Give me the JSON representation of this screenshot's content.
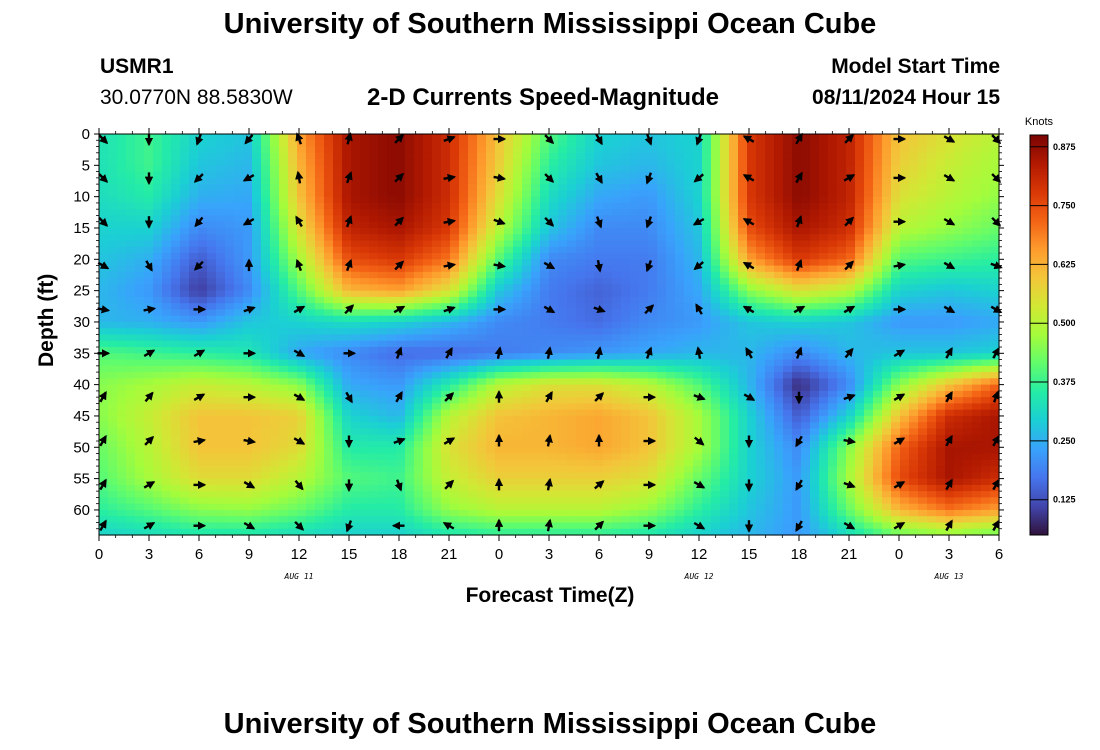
{
  "title": "University of Southern Mississippi Ocean Cube",
  "footer_title": "University of Southern Mississippi Ocean Cube",
  "station": "USMR1",
  "coordinates": "30.0770N  88.5830W",
  "subtitle": "2-D Currents Speed-Magnitude",
  "model_start_label": "Model Start Time",
  "model_start_value": "08/11/2024 Hour 15",
  "chart_data": {
    "type": "heatmap",
    "title": "2-D Currents Speed-Magnitude",
    "xlabel": "Forecast Time(Z)",
    "ylabel": "Depth (ft)",
    "x_ticks": [
      "0",
      "3",
      "6",
      "9",
      "12",
      "15",
      "18",
      "21",
      "0",
      "3",
      "6",
      "9",
      "12",
      "15",
      "18",
      "21",
      "0",
      "3",
      "6"
    ],
    "x_range_hours": [
      0,
      54
    ],
    "date_labels": [
      {
        "text": "AUG 11",
        "hour": 12
      },
      {
        "text": "AUG 12",
        "hour": 36
      },
      {
        "text": "AUG 13",
        "hour": 51
      }
    ],
    "y_ticks": [
      0,
      5,
      10,
      15,
      20,
      25,
      30,
      35,
      40,
      45,
      50,
      55,
      60
    ],
    "y_range_ft": [
      0,
      64
    ],
    "y_inverted": true,
    "colorbar": {
      "unit": "Knots",
      "ticks": [
        0.125,
        0.25,
        0.375,
        0.5,
        0.625,
        0.75,
        0.875
      ],
      "range": [
        0.05,
        0.9
      ],
      "colors": [
        "#30123b",
        "#4145ab",
        "#4675ed",
        "#39a2fc",
        "#1bcfd4",
        "#24eca6",
        "#61fc6c",
        "#a4fc3b",
        "#d1e834",
        "#f3c63a",
        "#fe9b2d",
        "#f36315",
        "#d93806",
        "#b11901",
        "#7a0403"
      ]
    },
    "speed_field": {
      "x_hours": [
        0,
        3,
        6,
        9,
        12,
        15,
        18,
        21,
        24,
        27,
        30,
        33,
        36,
        39,
        42,
        45,
        48,
        51,
        54
      ],
      "depth_ft": [
        0,
        5,
        10,
        15,
        20,
        25,
        30,
        35,
        40,
        45,
        50,
        55,
        60,
        64
      ],
      "values_knots": [
        [
          0.33,
          0.38,
          0.3,
          0.28,
          0.65,
          0.85,
          0.88,
          0.8,
          0.6,
          0.4,
          0.3,
          0.28,
          0.3,
          0.78,
          0.88,
          0.82,
          0.6,
          0.55,
          0.5
        ],
        [
          0.33,
          0.38,
          0.28,
          0.26,
          0.62,
          0.85,
          0.88,
          0.8,
          0.58,
          0.36,
          0.28,
          0.26,
          0.3,
          0.78,
          0.88,
          0.82,
          0.58,
          0.52,
          0.48
        ],
        [
          0.32,
          0.35,
          0.25,
          0.24,
          0.6,
          0.85,
          0.88,
          0.8,
          0.55,
          0.32,
          0.24,
          0.22,
          0.3,
          0.78,
          0.88,
          0.82,
          0.55,
          0.5,
          0.46
        ],
        [
          0.3,
          0.3,
          0.2,
          0.22,
          0.55,
          0.82,
          0.85,
          0.78,
          0.5,
          0.28,
          0.2,
          0.2,
          0.28,
          0.75,
          0.85,
          0.8,
          0.5,
          0.46,
          0.42
        ],
        [
          0.28,
          0.25,
          0.14,
          0.22,
          0.48,
          0.75,
          0.78,
          0.7,
          0.4,
          0.2,
          0.18,
          0.18,
          0.26,
          0.65,
          0.78,
          0.72,
          0.4,
          0.38,
          0.36
        ],
        [
          0.26,
          0.22,
          0.1,
          0.2,
          0.4,
          0.62,
          0.65,
          0.55,
          0.28,
          0.18,
          0.15,
          0.18,
          0.24,
          0.45,
          0.55,
          0.5,
          0.3,
          0.28,
          0.3
        ],
        [
          0.26,
          0.25,
          0.22,
          0.28,
          0.3,
          0.32,
          0.3,
          0.26,
          0.2,
          0.18,
          0.16,
          0.2,
          0.22,
          0.28,
          0.3,
          0.28,
          0.22,
          0.22,
          0.24
        ],
        [
          0.4,
          0.38,
          0.36,
          0.34,
          0.24,
          0.2,
          0.16,
          0.16,
          0.18,
          0.2,
          0.22,
          0.24,
          0.26,
          0.26,
          0.2,
          0.26,
          0.28,
          0.28,
          0.3
        ],
        [
          0.45,
          0.48,
          0.52,
          0.5,
          0.45,
          0.24,
          0.22,
          0.35,
          0.5,
          0.55,
          0.55,
          0.5,
          0.4,
          0.26,
          0.08,
          0.2,
          0.45,
          0.6,
          0.72
        ],
        [
          0.45,
          0.52,
          0.6,
          0.6,
          0.58,
          0.3,
          0.26,
          0.5,
          0.6,
          0.62,
          0.64,
          0.6,
          0.48,
          0.3,
          0.14,
          0.3,
          0.6,
          0.8,
          0.85
        ],
        [
          0.42,
          0.5,
          0.6,
          0.6,
          0.56,
          0.35,
          0.35,
          0.55,
          0.62,
          0.62,
          0.64,
          0.6,
          0.48,
          0.3,
          0.2,
          0.45,
          0.72,
          0.85,
          0.85
        ],
        [
          0.4,
          0.48,
          0.56,
          0.56,
          0.5,
          0.4,
          0.38,
          0.52,
          0.58,
          0.58,
          0.58,
          0.55,
          0.42,
          0.3,
          0.22,
          0.48,
          0.75,
          0.85,
          0.8
        ],
        [
          0.36,
          0.4,
          0.45,
          0.46,
          0.42,
          0.35,
          0.35,
          0.46,
          0.5,
          0.5,
          0.5,
          0.46,
          0.36,
          0.28,
          0.22,
          0.42,
          0.62,
          0.7,
          0.65
        ],
        [
          0.3,
          0.32,
          0.34,
          0.34,
          0.32,
          0.3,
          0.3,
          0.34,
          0.36,
          0.36,
          0.36,
          0.34,
          0.3,
          0.26,
          0.22,
          0.32,
          0.42,
          0.45,
          0.42
        ]
      ]
    },
    "arrows": {
      "x_hours": [
        0,
        3,
        6,
        9,
        12,
        15,
        18,
        21,
        24,
        27,
        30,
        33,
        36,
        39,
        42,
        45,
        48,
        51,
        54
      ],
      "depth_ft": [
        0,
        7,
        14,
        21,
        28,
        35,
        42,
        49,
        56,
        63
      ],
      "direction_deg": [
        [
          135,
          180,
          200,
          220,
          340,
          15,
          45,
          70,
          90,
          135,
          150,
          160,
          200,
          300,
          30,
          45,
          90,
          120,
          135
        ],
        [
          135,
          180,
          225,
          240,
          350,
          20,
          45,
          80,
          100,
          135,
          150,
          200,
          230,
          300,
          30,
          60,
          90,
          120,
          135
        ],
        [
          135,
          180,
          220,
          240,
          330,
          20,
          45,
          80,
          110,
          135,
          160,
          200,
          240,
          300,
          20,
          45,
          90,
          120,
          135
        ],
        [
          120,
          150,
          225,
          0,
          340,
          20,
          45,
          80,
          100,
          120,
          170,
          200,
          230,
          300,
          20,
          45,
          80,
          120,
          110
        ],
        [
          100,
          80,
          90,
          70,
          60,
          45,
          60,
          70,
          90,
          120,
          110,
          45,
          330,
          300,
          60,
          60,
          90,
          120,
          120
        ],
        [
          90,
          60,
          60,
          90,
          120,
          90,
          20,
          30,
          10,
          10,
          10,
          20,
          350,
          330,
          20,
          40,
          60,
          30,
          30
        ],
        [
          30,
          40,
          60,
          90,
          120,
          150,
          30,
          45,
          0,
          30,
          45,
          90,
          110,
          120,
          180,
          70,
          60,
          30,
          20
        ],
        [
          30,
          45,
          80,
          100,
          120,
          180,
          70,
          60,
          0,
          10,
          0,
          90,
          130,
          180,
          210,
          100,
          60,
          30,
          30
        ],
        [
          30,
          60,
          90,
          120,
          140,
          180,
          160,
          45,
          0,
          10,
          50,
          90,
          120,
          180,
          210,
          110,
          60,
          30,
          30
        ],
        [
          30,
          60,
          90,
          120,
          135,
          200,
          270,
          300,
          0,
          10,
          45,
          90,
          120,
          180,
          210,
          120,
          60,
          30,
          30
        ]
      ]
    }
  }
}
